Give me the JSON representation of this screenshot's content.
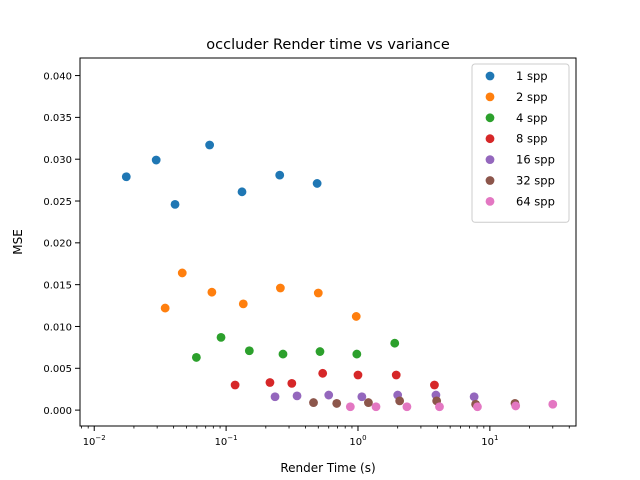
{
  "chart_data": {
    "type": "scatter",
    "title": "occluder Render time vs variance",
    "xlabel": "Render Time (s)",
    "ylabel": "MSE",
    "xscale": "log",
    "xlim": [
      0.0078,
      45
    ],
    "ylim": [
      -0.0019,
      0.0421
    ],
    "xticks": [
      {
        "value": 0.01,
        "base": "10",
        "exp": "−2"
      },
      {
        "value": 0.1,
        "base": "10",
        "exp": "−1"
      },
      {
        "value": 1,
        "base": "10",
        "exp": "0"
      },
      {
        "value": 10,
        "base": "10",
        "exp": "1"
      }
    ],
    "yticks": [
      {
        "value": 0.0,
        "label": "0.000"
      },
      {
        "value": 0.005,
        "label": "0.005"
      },
      {
        "value": 0.01,
        "label": "0.010"
      },
      {
        "value": 0.015,
        "label": "0.015"
      },
      {
        "value": 0.02,
        "label": "0.020"
      },
      {
        "value": 0.025,
        "label": "0.025"
      },
      {
        "value": 0.03,
        "label": "0.030"
      },
      {
        "value": 0.035,
        "label": "0.035"
      },
      {
        "value": 0.04,
        "label": "0.040"
      }
    ],
    "grid": false,
    "legend_position": "top-right",
    "series": [
      {
        "name": "1 spp",
        "color": "#1f77b4",
        "points": [
          [
            0.0175,
            0.0279
          ],
          [
            0.0295,
            0.0299
          ],
          [
            0.041,
            0.0246
          ],
          [
            0.075,
            0.0317
          ],
          [
            0.132,
            0.0261
          ],
          [
            0.255,
            0.0281
          ],
          [
            0.49,
            0.0271
          ]
        ]
      },
      {
        "name": "2 spp",
        "color": "#ff7f0e",
        "points": [
          [
            0.0345,
            0.0122
          ],
          [
            0.0465,
            0.0164
          ],
          [
            0.078,
            0.0141
          ],
          [
            0.135,
            0.0127
          ],
          [
            0.258,
            0.0146
          ],
          [
            0.5,
            0.014
          ],
          [
            0.97,
            0.0112
          ]
        ]
      },
      {
        "name": "4 spp",
        "color": "#2ca02c",
        "points": [
          [
            0.0595,
            0.0063
          ],
          [
            0.0915,
            0.0087
          ],
          [
            0.15,
            0.0071
          ],
          [
            0.27,
            0.0067
          ],
          [
            0.515,
            0.007
          ],
          [
            0.98,
            0.0067
          ],
          [
            1.9,
            0.008
          ]
        ]
      },
      {
        "name": "8 spp",
        "color": "#d62728",
        "points": [
          [
            0.117,
            0.003
          ],
          [
            0.215,
            0.0033
          ],
          [
            0.315,
            0.0032
          ],
          [
            0.54,
            0.0044
          ],
          [
            1.0,
            0.0042
          ],
          [
            1.95,
            0.0042
          ],
          [
            3.8,
            0.003
          ]
        ]
      },
      {
        "name": "16 spp",
        "color": "#9467bd",
        "points": [
          [
            0.235,
            0.0016
          ],
          [
            0.345,
            0.0017
          ],
          [
            0.6,
            0.0018
          ],
          [
            1.07,
            0.0016
          ],
          [
            2.0,
            0.0018
          ],
          [
            3.9,
            0.0018
          ],
          [
            7.6,
            0.0016
          ]
        ]
      },
      {
        "name": "32 spp",
        "color": "#8c564b",
        "points": [
          [
            0.46,
            0.0009
          ],
          [
            0.69,
            0.0008
          ],
          [
            1.2,
            0.0009
          ],
          [
            2.07,
            0.0011
          ],
          [
            3.95,
            0.0011
          ],
          [
            7.8,
            0.0007
          ],
          [
            15.5,
            0.0008
          ]
        ]
      },
      {
        "name": "64 spp",
        "color": "#e377c2",
        "points": [
          [
            0.875,
            0.0004
          ],
          [
            1.37,
            0.0004
          ],
          [
            2.35,
            0.0004
          ],
          [
            4.15,
            0.0004
          ],
          [
            8.05,
            0.0004
          ],
          [
            15.7,
            0.0005
          ],
          [
            30.0,
            0.0007
          ]
        ]
      }
    ]
  }
}
